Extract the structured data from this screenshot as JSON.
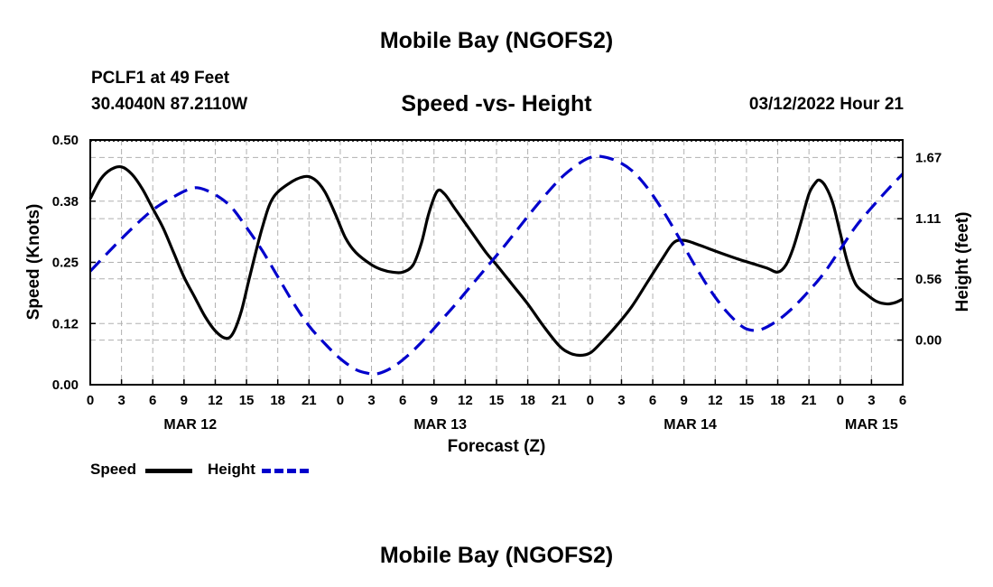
{
  "page": {
    "top_title": "Mobile Bay (NGOFS2)",
    "bottom_title": "Mobile Bay (NGOFS2)",
    "station": "PCLF1 at 49 Feet",
    "coords": "30.4040N  87.2110W",
    "datetime": "03/12/2022 Hour 21"
  },
  "colors": {
    "speed": "#000000",
    "height": "#0000cc",
    "grid": "#b0b0b0"
  },
  "chart_data": {
    "type": "line",
    "title": "Speed -vs- Height",
    "xlabel": "Forecast (Z)",
    "ylabel_left": "Speed (Knots)",
    "ylabel_right": "Height (feet)",
    "x_unit": "hours from MAR 12 00Z",
    "xlim": [
      0,
      78
    ],
    "ylim_left": [
      0,
      0.5
    ],
    "ylim_right": [
      -0.4082,
      1.83
    ],
    "x_ticks": [
      {
        "x": 0,
        "label": "0"
      },
      {
        "x": 3,
        "label": "3"
      },
      {
        "x": 6,
        "label": "6"
      },
      {
        "x": 9,
        "label": "9"
      },
      {
        "x": 12,
        "label": "12"
      },
      {
        "x": 15,
        "label": "15"
      },
      {
        "x": 18,
        "label": "18"
      },
      {
        "x": 21,
        "label": "21"
      },
      {
        "x": 24,
        "label": "0"
      },
      {
        "x": 27,
        "label": "3"
      },
      {
        "x": 30,
        "label": "6"
      },
      {
        "x": 33,
        "label": "9"
      },
      {
        "x": 36,
        "label": "12"
      },
      {
        "x": 39,
        "label": "15"
      },
      {
        "x": 42,
        "label": "18"
      },
      {
        "x": 45,
        "label": "21"
      },
      {
        "x": 48,
        "label": "0"
      },
      {
        "x": 51,
        "label": "3"
      },
      {
        "x": 54,
        "label": "6"
      },
      {
        "x": 57,
        "label": "9"
      },
      {
        "x": 60,
        "label": "12"
      },
      {
        "x": 63,
        "label": "15"
      },
      {
        "x": 66,
        "label": "18"
      },
      {
        "x": 69,
        "label": "21"
      },
      {
        "x": 72,
        "label": "0"
      },
      {
        "x": 75,
        "label": "3"
      },
      {
        "x": 78,
        "label": "6"
      }
    ],
    "date_labels": [
      {
        "x": 9.6,
        "label": "MAR 12"
      },
      {
        "x": 33.6,
        "label": "MAR 13"
      },
      {
        "x": 57.6,
        "label": "MAR 14"
      },
      {
        "x": 75.0,
        "label": "MAR 15"
      }
    ],
    "y_ticks_left": [
      {
        "v": 0.0,
        "label": "0.00"
      },
      {
        "v": 0.125,
        "label": "0.12"
      },
      {
        "v": 0.25,
        "label": "0.25"
      },
      {
        "v": 0.375,
        "label": "0.38"
      },
      {
        "v": 0.5,
        "label": "0.50"
      }
    ],
    "y_ticks_right": [
      {
        "v": 0.0,
        "label": "0.00"
      },
      {
        "v": 0.56,
        "label": "0.56"
      },
      {
        "v": 1.11,
        "label": "1.11"
      },
      {
        "v": 1.67,
        "label": "1.67"
      }
    ],
    "series": [
      {
        "name": "Speed",
        "axis": "left",
        "style": "solid",
        "points": [
          [
            0,
            0.38
          ],
          [
            1,
            0.42
          ],
          [
            2,
            0.44
          ],
          [
            3,
            0.445
          ],
          [
            4,
            0.43
          ],
          [
            5,
            0.4
          ],
          [
            6,
            0.36
          ],
          [
            7,
            0.32
          ],
          [
            8,
            0.27
          ],
          [
            9,
            0.22
          ],
          [
            10,
            0.18
          ],
          [
            11,
            0.14
          ],
          [
            12,
            0.11
          ],
          [
            13,
            0.095
          ],
          [
            13.7,
            0.105
          ],
          [
            14.5,
            0.15
          ],
          [
            15.3,
            0.22
          ],
          [
            16.5,
            0.32
          ],
          [
            17.5,
            0.38
          ],
          [
            19,
            0.41
          ],
          [
            20.5,
            0.425
          ],
          [
            21.5,
            0.42
          ],
          [
            22.5,
            0.395
          ],
          [
            23.5,
            0.35
          ],
          [
            24.5,
            0.3
          ],
          [
            25.5,
            0.27
          ],
          [
            27,
            0.245
          ],
          [
            28,
            0.235
          ],
          [
            29,
            0.23
          ],
          [
            30,
            0.23
          ],
          [
            31,
            0.245
          ],
          [
            31.8,
            0.29
          ],
          [
            32.5,
            0.35
          ],
          [
            33.3,
            0.395
          ],
          [
            34,
            0.39
          ],
          [
            35,
            0.36
          ],
          [
            36.5,
            0.315
          ],
          [
            38,
            0.27
          ],
          [
            39,
            0.245
          ],
          [
            40.5,
            0.205
          ],
          [
            42,
            0.165
          ],
          [
            43.5,
            0.12
          ],
          [
            45,
            0.08
          ],
          [
            46,
            0.065
          ],
          [
            47,
            0.06
          ],
          [
            48,
            0.065
          ],
          [
            49,
            0.085
          ],
          [
            50.5,
            0.12
          ],
          [
            52,
            0.16
          ],
          [
            53.5,
            0.21
          ],
          [
            55,
            0.26
          ],
          [
            56,
            0.29
          ],
          [
            57,
            0.295
          ],
          [
            58.5,
            0.285
          ],
          [
            60,
            0.273
          ],
          [
            62,
            0.258
          ],
          [
            63.5,
            0.248
          ],
          [
            65,
            0.238
          ],
          [
            66,
            0.23
          ],
          [
            66.8,
            0.245
          ],
          [
            67.5,
            0.28
          ],
          [
            68.2,
            0.33
          ],
          [
            69,
            0.39
          ],
          [
            69.6,
            0.412
          ],
          [
            70,
            0.418
          ],
          [
            70.6,
            0.405
          ],
          [
            71.3,
            0.37
          ],
          [
            72,
            0.31
          ],
          [
            72.7,
            0.25
          ],
          [
            73.5,
            0.205
          ],
          [
            74.5,
            0.185
          ],
          [
            75.5,
            0.17
          ],
          [
            76.5,
            0.165
          ],
          [
            77.3,
            0.168
          ],
          [
            78,
            0.175
          ]
        ]
      },
      {
        "name": "Height",
        "axis": "right",
        "style": "dashed",
        "points": [
          [
            0,
            0.63
          ],
          [
            2,
            0.83
          ],
          [
            4,
            1.02
          ],
          [
            6,
            1.19
          ],
          [
            8,
            1.31
          ],
          [
            9.5,
            1.38
          ],
          [
            10.5,
            1.39
          ],
          [
            12,
            1.33
          ],
          [
            13.5,
            1.22
          ],
          [
            15,
            1.03
          ],
          [
            16.5,
            0.82
          ],
          [
            18,
            0.58
          ],
          [
            19.5,
            0.34
          ],
          [
            21,
            0.13
          ],
          [
            22.5,
            -0.03
          ],
          [
            24,
            -0.17
          ],
          [
            25.5,
            -0.27
          ],
          [
            26.5,
            -0.3
          ],
          [
            27.5,
            -0.31
          ],
          [
            29,
            -0.25
          ],
          [
            30.5,
            -0.14
          ],
          [
            32,
            0.0
          ],
          [
            33.5,
            0.16
          ],
          [
            35,
            0.32
          ],
          [
            36.5,
            0.49
          ],
          [
            38,
            0.66
          ],
          [
            39.5,
            0.83
          ],
          [
            41,
            1.01
          ],
          [
            42.5,
            1.19
          ],
          [
            44,
            1.36
          ],
          [
            45.5,
            1.51
          ],
          [
            47,
            1.62
          ],
          [
            48,
            1.67
          ],
          [
            49,
            1.68
          ],
          [
            50.5,
            1.64
          ],
          [
            52,
            1.55
          ],
          [
            53.5,
            1.39
          ],
          [
            55,
            1.18
          ],
          [
            56.5,
            0.94
          ],
          [
            58,
            0.69
          ],
          [
            59.5,
            0.46
          ],
          [
            61,
            0.27
          ],
          [
            62.5,
            0.13
          ],
          [
            63.5,
            0.09
          ],
          [
            64.5,
            0.1
          ],
          [
            66,
            0.18
          ],
          [
            67.5,
            0.3
          ],
          [
            69,
            0.45
          ],
          [
            70.5,
            0.62
          ],
          [
            72,
            0.83
          ],
          [
            73.5,
            1.04
          ],
          [
            75,
            1.21
          ],
          [
            76.5,
            1.37
          ],
          [
            78,
            1.52
          ]
        ]
      }
    ],
    "legend": [
      {
        "name": "Speed"
      },
      {
        "name": "Height"
      }
    ]
  }
}
